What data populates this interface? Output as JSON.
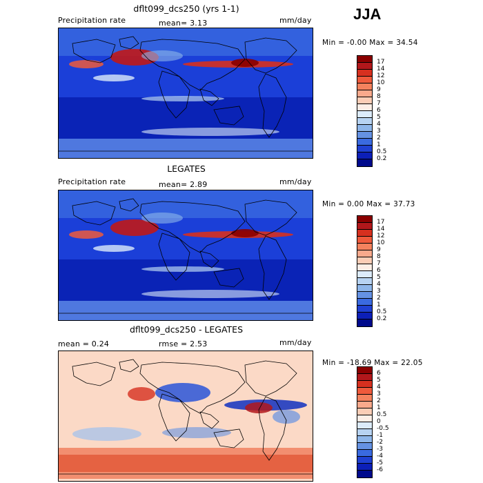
{
  "season": "JJA",
  "panels": [
    {
      "title": "dflt099_dcs250 (yrs 1-1)",
      "left_label": "Precipitation rate",
      "mid_label": "mean=   3.13",
      "units": "mm/day",
      "minmax": "Min =  -0.00 Max =  34.54",
      "colorbar": {
        "labels": [
          "17",
          "14",
          "12",
          "10",
          "9",
          "8",
          "7",
          "6",
          "5",
          "4",
          "3",
          "2",
          "1",
          "0.5",
          "0.2"
        ],
        "colors": [
          "#8b0000",
          "#b2171b",
          "#d7301f",
          "#ef5a3c",
          "#f4825e",
          "#f9a98c",
          "#fbcdb6",
          "#fdeee6",
          "#dcebfa",
          "#b7d3f2",
          "#8eb6ea",
          "#6592e3",
          "#3a6ae0",
          "#1f40d2",
          "#0c1fb8",
          "#000a8c"
        ]
      },
      "field": "precip"
    },
    {
      "title": "LEGATES",
      "left_label": "Precipitation rate",
      "mid_label": "mean=   2.89",
      "units": "mm/day",
      "minmax": "Min =   0.00 Max =  37.73",
      "colorbar": {
        "labels": [
          "17",
          "14",
          "12",
          "10",
          "9",
          "8",
          "7",
          "6",
          "5",
          "4",
          "3",
          "2",
          "1",
          "0.5",
          "0.2"
        ],
        "colors": [
          "#8b0000",
          "#b2171b",
          "#d7301f",
          "#ef5a3c",
          "#f4825e",
          "#f9a98c",
          "#fbcdb6",
          "#fdeee6",
          "#dcebfa",
          "#b7d3f2",
          "#8eb6ea",
          "#6592e3",
          "#3a6ae0",
          "#1f40d2",
          "#0c1fb8",
          "#000a8c"
        ]
      },
      "field": "obs"
    },
    {
      "title": "dflt099_dcs250 - LEGATES",
      "left_label": "mean =    0.24",
      "mid_label": "rmse =    2.53",
      "units": "mm/day",
      "minmax": "Min = -18.69 Max =  22.05",
      "colorbar": {
        "labels": [
          "6",
          "5",
          "4",
          "3",
          "2",
          "1",
          "0.5",
          "0",
          "-0.5",
          "-1",
          "-2",
          "-3",
          "-4",
          "-5",
          "-6"
        ],
        "colors": [
          "#8b0000",
          "#b2171b",
          "#d7301f",
          "#ef5a3c",
          "#f4825e",
          "#f9a98c",
          "#fbcdb6",
          "#fdeee6",
          "#dcebfa",
          "#b7d3f2",
          "#8eb6ea",
          "#6592e3",
          "#3a6ae0",
          "#1f40d2",
          "#0c1fb8",
          "#000a8c"
        ]
      },
      "field": "diff"
    }
  ]
}
